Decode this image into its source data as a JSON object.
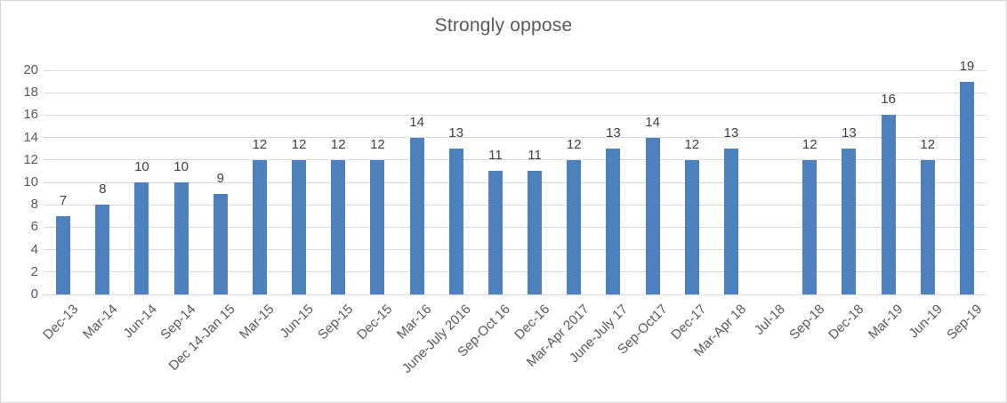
{
  "window": {
    "background": "#ffffff",
    "border_color": "#d6d6d6"
  },
  "chart_data": {
    "type": "bar",
    "title": "Strongly oppose",
    "categories": [
      "Dec-13",
      "Mar-14",
      "Jun-14",
      "Sep-14",
      "Dec 14-Jan 15",
      "Mar-15",
      "Jun-15",
      "Sep-15",
      "Dec-15",
      "Mar-16",
      "June-July 2016",
      "Sep-Oct 16",
      "Dec-16",
      "Mar-Apr 2017",
      "June-July 17",
      "Sep-Oct17",
      "Dec-17",
      "Mar-Apr 18",
      "Jul-18",
      "Sep-18",
      "Dec-18",
      "Mar-19",
      "Jun-19",
      "Sep-19"
    ],
    "values": [
      7,
      8,
      10,
      10,
      9,
      12,
      12,
      12,
      12,
      14,
      13,
      11,
      11,
      12,
      13,
      14,
      12,
      13,
      null,
      12,
      13,
      16,
      12,
      19
    ],
    "data_labels_shown": true,
    "xlabel": "",
    "ylabel": "",
    "ylim": [
      0,
      20
    ],
    "ytick_step": 2,
    "grid": true,
    "legend": "none",
    "colors": {
      "bar": "#4e80bd",
      "gridline": "#d9d9d9",
      "title": "#595959",
      "axis_labels": "#595959",
      "data_labels": "#404040",
      "frame_border": "#d6d6d6"
    }
  }
}
